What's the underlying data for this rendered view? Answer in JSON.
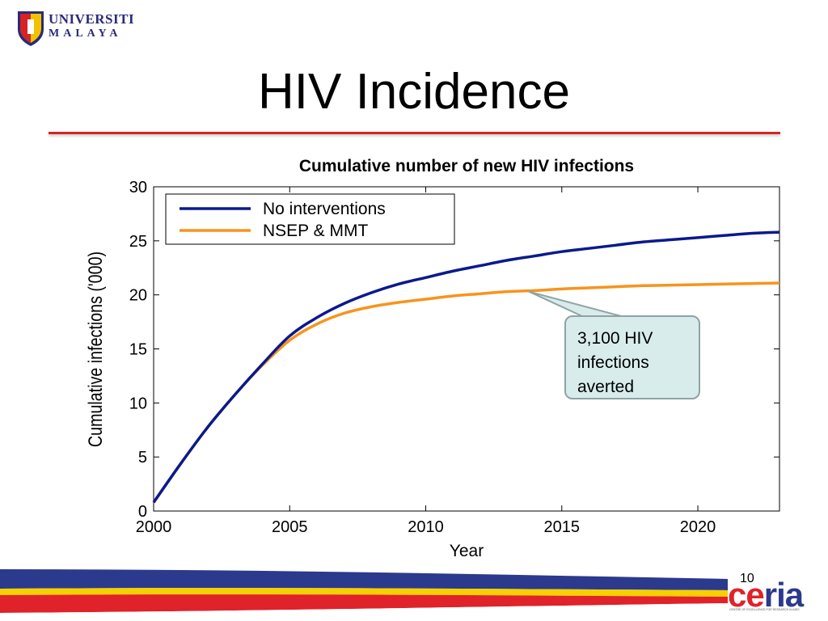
{
  "header": {
    "university_line1": "UNIVERSITI",
    "university_line2": "MALAYA",
    "slide_title": "HIV Incidence"
  },
  "chart_data": {
    "type": "line",
    "title": "Cumulative number of new HIV infections",
    "xlabel": "Year",
    "ylabel": "Cumulative infections ('000)",
    "xlim": [
      2000,
      2023
    ],
    "ylim": [
      0,
      30
    ],
    "xticks": [
      2000,
      2005,
      2010,
      2015,
      2020
    ],
    "yticks": [
      0,
      5,
      10,
      15,
      20,
      25,
      30
    ],
    "grid": false,
    "legend_position": "top-left",
    "series": [
      {
        "name": "No interventions",
        "color": "#0a1a8c",
        "x": [
          2000,
          2001,
          2002,
          2003,
          2004,
          2005,
          2006,
          2007,
          2008,
          2009,
          2010,
          2011,
          2012,
          2013,
          2014,
          2015,
          2016,
          2017,
          2018,
          2019,
          2020,
          2021,
          2022,
          2023
        ],
        "y": [
          0.8,
          4.4,
          7.8,
          10.8,
          13.6,
          16.2,
          17.9,
          19.2,
          20.2,
          21.0,
          21.6,
          22.2,
          22.7,
          23.2,
          23.6,
          24.0,
          24.3,
          24.6,
          24.9,
          25.1,
          25.3,
          25.5,
          25.7,
          25.8
        ]
      },
      {
        "name": "NSEP & MMT",
        "color": "#f7941d",
        "x": [
          2000,
          2001,
          2002,
          2003,
          2004,
          2005,
          2006,
          2007,
          2008,
          2009,
          2010,
          2011,
          2012,
          2013,
          2014,
          2015,
          2016,
          2017,
          2018,
          2019,
          2020,
          2021,
          2022,
          2023
        ],
        "y": [
          0.8,
          4.4,
          7.8,
          10.8,
          13.5,
          15.8,
          17.3,
          18.3,
          18.9,
          19.3,
          19.6,
          19.9,
          20.1,
          20.3,
          20.4,
          20.55,
          20.65,
          20.75,
          20.85,
          20.9,
          20.95,
          21.0,
          21.05,
          21.1
        ]
      }
    ],
    "annotations": [
      {
        "text_lines": [
          "3,100 HIV",
          "infections",
          "averted"
        ],
        "points_to": {
          "x": 2013.8,
          "y": 20.3
        }
      }
    ]
  },
  "footer": {
    "page_number": "10",
    "partner_logo": "ceria",
    "partner_tagline": "CENTRE OF EXCELLENCE FOR RESEARCH IN AIDS"
  },
  "colors": {
    "title_rule": "#d42424",
    "callout_fill": "#d8ecec",
    "callout_border": "#8fa3a6",
    "footer_blue": "#2b3a8c",
    "footer_red": "#e0222a",
    "footer_yellow": "#f6d000"
  }
}
